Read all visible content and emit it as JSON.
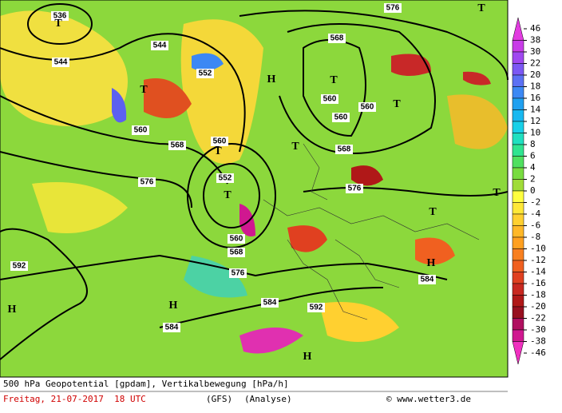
{
  "map": {
    "contour_labels": [
      "536",
      "544",
      "544",
      "552",
      "560",
      "568",
      "576",
      "560",
      "552",
      "560",
      "568",
      "576",
      "592",
      "584",
      "584",
      "592",
      "568",
      "560",
      "560",
      "560",
      "568",
      "576",
      "584",
      "576"
    ],
    "centers": [
      "T",
      "T",
      "T",
      "T",
      "H",
      "T",
      "T",
      "T",
      "T",
      "T",
      "H",
      "H",
      "H",
      "H",
      "T"
    ]
  },
  "colorbar": {
    "levels": [
      46,
      38,
      30,
      22,
      20,
      18,
      16,
      14,
      12,
      10,
      8,
      6,
      4,
      2,
      0,
      -2,
      -4,
      -6,
      -8,
      -10,
      -12,
      -14,
      -16,
      -18,
      -20,
      -22,
      -30,
      -38,
      -46
    ],
    "colors": [
      "#e23ce0",
      "#c83ce8",
      "#a048f0",
      "#7c58f4",
      "#5c70f4",
      "#3c88f4",
      "#20a0f0",
      "#18b8f0",
      "#18d0e8",
      "#20e0c0",
      "#30e490",
      "#50e060",
      "#78dc40",
      "#a0dc38",
      "#ffff40",
      "#ffe838",
      "#ffd030",
      "#ffb828",
      "#ffa020",
      "#f88020",
      "#f06020",
      "#e04020",
      "#c82820",
      "#b01818",
      "#981020",
      "#b01060",
      "#d01890",
      "#f030c0"
    ]
  },
  "footer": {
    "title": "500 hPa Geopotential [gpdam], Vertikalbewegung [hPa/h]",
    "date": "Freitag, 21-07-2017  18 UTC",
    "model": "(GFS)",
    "run": "(Analyse)",
    "copyright": "© www.wetter3.de"
  }
}
